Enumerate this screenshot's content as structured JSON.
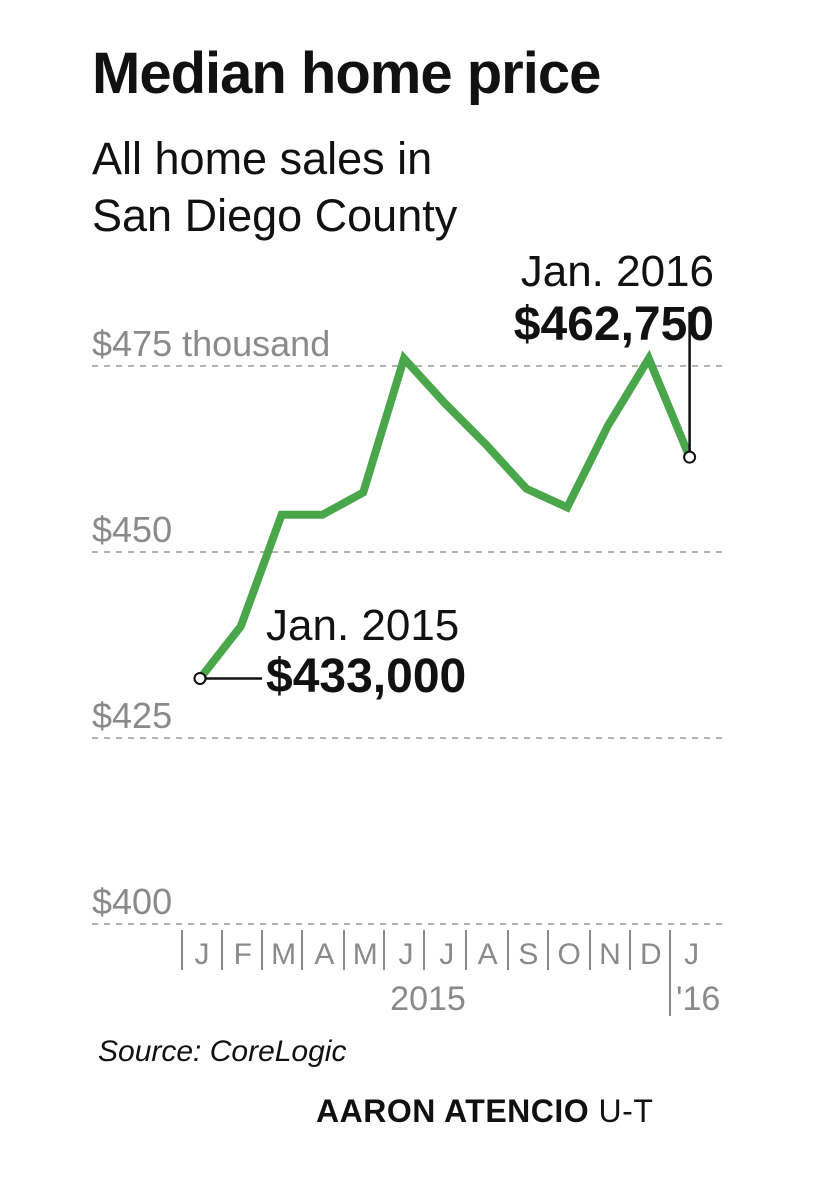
{
  "title": "Median home price",
  "subtitle": "All home sales in San Diego County",
  "chart_data": {
    "type": "line",
    "x": [
      "J",
      "F",
      "M",
      "A",
      "M",
      "J",
      "J",
      "A",
      "S",
      "O",
      "N",
      "D",
      "J"
    ],
    "year_labels": [
      "2015",
      "'16"
    ],
    "series": [
      {
        "values": [
          433000,
          440000,
          455000,
          455000,
          458000,
          476000,
          470000,
          464500,
          458500,
          456000,
          467000,
          476000,
          462750
        ]
      }
    ],
    "y_ticks": [
      {
        "value": 475,
        "label": "$475 thousand"
      },
      {
        "value": 450,
        "label": "$450"
      },
      {
        "value": 425,
        "label": "$425"
      },
      {
        "value": 400,
        "label": "$400"
      }
    ],
    "ylim": [
      400,
      475
    ],
    "grid": true,
    "annotations": [
      {
        "date": "Jan. 2015",
        "value": "$433,000"
      },
      {
        "date": "Jan. 2016",
        "value": "$462,750"
      }
    ],
    "line_color": "#4aa64a"
  },
  "source": "Source: CoreLogic",
  "credit": {
    "name": "AARON ATENCIO",
    "outlet": "U-T"
  }
}
